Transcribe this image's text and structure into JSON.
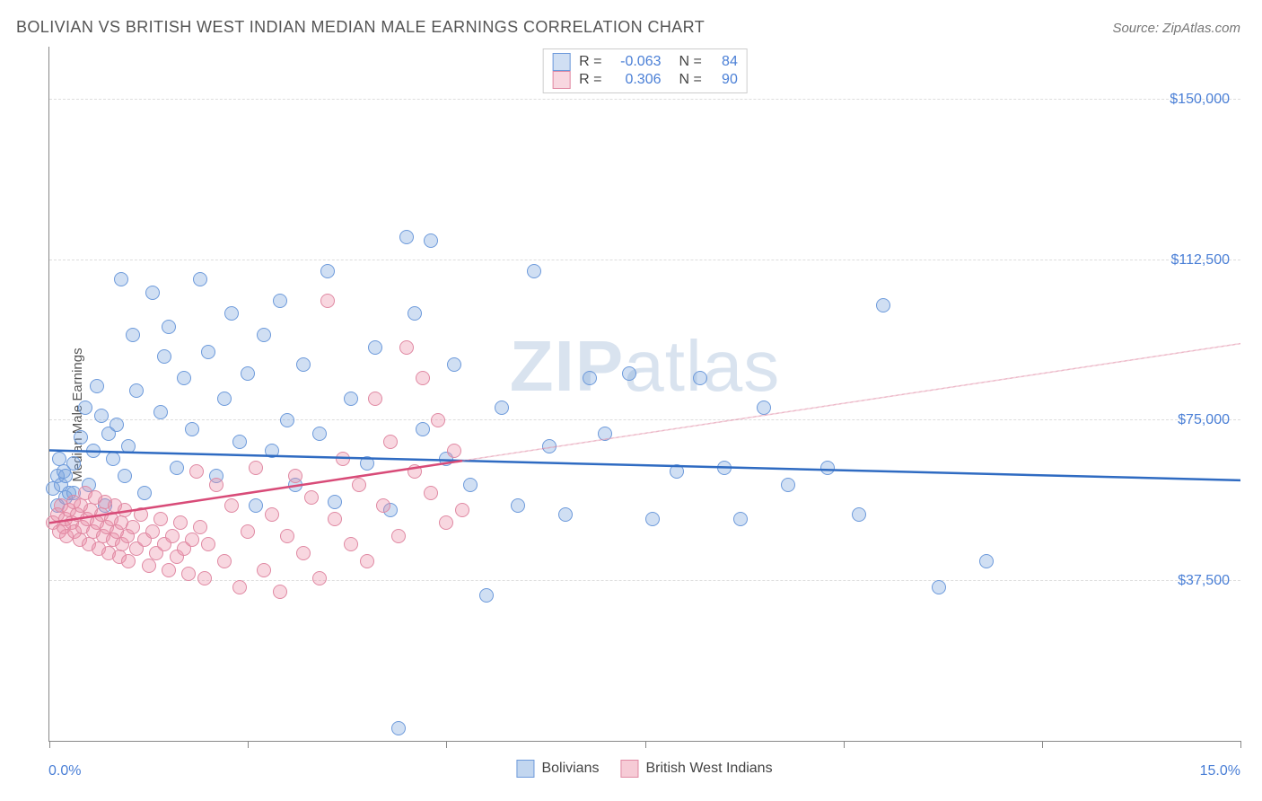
{
  "title": "BOLIVIAN VS BRITISH WEST INDIAN MEDIAN MALE EARNINGS CORRELATION CHART",
  "source": "Source: ZipAtlas.com",
  "watermark": "ZIPatlas",
  "y_axis_label": "Median Male Earnings",
  "chart": {
    "type": "scatter",
    "xlim": [
      0,
      15
    ],
    "ylim": [
      0,
      162500
    ],
    "x_tick_positions": [
      0,
      2.5,
      5,
      7.5,
      10,
      12.5,
      15
    ],
    "x_label_min": "0.0%",
    "x_label_max": "15.0%",
    "y_gridlines": [
      37500,
      75000,
      112500,
      150000
    ],
    "y_tick_labels": [
      "$37,500",
      "$75,000",
      "$112,500",
      "$150,000"
    ],
    "background_color": "#ffffff",
    "grid_color": "#dddddd",
    "axis_color": "#888888",
    "y_label_color": "#4a7fd6",
    "x_label_color": "#4a7fd6"
  },
  "series": [
    {
      "name": "Bolivians",
      "fill": "rgba(120,163,220,0.35)",
      "stroke": "#6d9adb",
      "line_color": "#2f6bc2",
      "r_value": "-0.063",
      "n_value": "84",
      "trend": {
        "x1": 0,
        "y1": 68000,
        "x2": 15,
        "y2": 61000,
        "solid_to_x": 15
      },
      "points": [
        [
          0.05,
          59000
        ],
        [
          0.1,
          62000
        ],
        [
          0.1,
          55000
        ],
        [
          0.12,
          66000
        ],
        [
          0.15,
          60000
        ],
        [
          0.18,
          63000
        ],
        [
          0.2,
          57000
        ],
        [
          0.25,
          58000
        ],
        [
          0.3,
          65000
        ],
        [
          0.4,
          71000
        ],
        [
          0.45,
          78000
        ],
        [
          0.5,
          60000
        ],
        [
          0.55,
          68000
        ],
        [
          0.6,
          83000
        ],
        [
          0.65,
          76000
        ],
        [
          0.7,
          55000
        ],
        [
          0.75,
          72000
        ],
        [
          0.8,
          66000
        ],
        [
          0.85,
          74000
        ],
        [
          0.9,
          108000
        ],
        [
          0.95,
          62000
        ],
        [
          1.0,
          69000
        ],
        [
          1.05,
          95000
        ],
        [
          1.1,
          82000
        ],
        [
          1.2,
          58000
        ],
        [
          1.3,
          105000
        ],
        [
          1.4,
          77000
        ],
        [
          1.45,
          90000
        ],
        [
          1.5,
          97000
        ],
        [
          1.6,
          64000
        ],
        [
          1.7,
          85000
        ],
        [
          1.8,
          73000
        ],
        [
          1.9,
          108000
        ],
        [
          2.0,
          91000
        ],
        [
          2.1,
          62000
        ],
        [
          2.2,
          80000
        ],
        [
          2.3,
          100000
        ],
        [
          2.4,
          70000
        ],
        [
          2.5,
          86000
        ],
        [
          2.6,
          55000
        ],
        [
          2.7,
          95000
        ],
        [
          2.8,
          68000
        ],
        [
          2.9,
          103000
        ],
        [
          3.0,
          75000
        ],
        [
          3.1,
          60000
        ],
        [
          3.2,
          88000
        ],
        [
          3.4,
          72000
        ],
        [
          3.5,
          110000
        ],
        [
          3.6,
          56000
        ],
        [
          3.8,
          80000
        ],
        [
          4.0,
          65000
        ],
        [
          4.1,
          92000
        ],
        [
          4.3,
          54000
        ],
        [
          4.5,
          118000
        ],
        [
          4.6,
          100000
        ],
        [
          4.7,
          73000
        ],
        [
          4.8,
          117000
        ],
        [
          5.0,
          66000
        ],
        [
          5.1,
          88000
        ],
        [
          5.3,
          60000
        ],
        [
          5.5,
          34000
        ],
        [
          5.7,
          78000
        ],
        [
          5.9,
          55000
        ],
        [
          6.1,
          110000
        ],
        [
          6.3,
          69000
        ],
        [
          6.5,
          53000
        ],
        [
          6.8,
          85000
        ],
        [
          7.0,
          72000
        ],
        [
          7.3,
          86000
        ],
        [
          7.6,
          52000
        ],
        [
          7.9,
          63000
        ],
        [
          8.2,
          85000
        ],
        [
          8.5,
          64000
        ],
        [
          8.7,
          52000
        ],
        [
          9.0,
          78000
        ],
        [
          9.3,
          60000
        ],
        [
          9.8,
          64000
        ],
        [
          10.2,
          53000
        ],
        [
          10.5,
          102000
        ],
        [
          11.2,
          36000
        ],
        [
          11.8,
          42000
        ],
        [
          4.4,
          3000
        ],
        [
          0.2,
          62000
        ],
        [
          0.3,
          58000
        ]
      ]
    },
    {
      "name": "British West Indians",
      "fill": "rgba(235,140,165,0.35)",
      "stroke": "#e089a3",
      "line_color": "#d84b78",
      "r_value": "0.306",
      "n_value": "90",
      "trend": {
        "x1": 0,
        "y1": 51000,
        "x2": 15,
        "y2": 93000,
        "solid_to_x": 5.2
      },
      "points": [
        [
          0.05,
          51000
        ],
        [
          0.1,
          53000
        ],
        [
          0.12,
          49000
        ],
        [
          0.15,
          55000
        ],
        [
          0.18,
          50000
        ],
        [
          0.2,
          52000
        ],
        [
          0.22,
          48000
        ],
        [
          0.25,
          54000
        ],
        [
          0.28,
          51000
        ],
        [
          0.3,
          56000
        ],
        [
          0.32,
          49000
        ],
        [
          0.35,
          53000
        ],
        [
          0.38,
          47000
        ],
        [
          0.4,
          55000
        ],
        [
          0.42,
          50000
        ],
        [
          0.45,
          58000
        ],
        [
          0.48,
          52000
        ],
        [
          0.5,
          46000
        ],
        [
          0.52,
          54000
        ],
        [
          0.55,
          49000
        ],
        [
          0.58,
          57000
        ],
        [
          0.6,
          51000
        ],
        [
          0.62,
          45000
        ],
        [
          0.65,
          53000
        ],
        [
          0.68,
          48000
        ],
        [
          0.7,
          56000
        ],
        [
          0.72,
          50000
        ],
        [
          0.75,
          44000
        ],
        [
          0.78,
          52000
        ],
        [
          0.8,
          47000
        ],
        [
          0.82,
          55000
        ],
        [
          0.85,
          49000
        ],
        [
          0.88,
          43000
        ],
        [
          0.9,
          51000
        ],
        [
          0.92,
          46000
        ],
        [
          0.95,
          54000
        ],
        [
          0.98,
          48000
        ],
        [
          1.0,
          42000
        ],
        [
          1.05,
          50000
        ],
        [
          1.1,
          45000
        ],
        [
          1.15,
          53000
        ],
        [
          1.2,
          47000
        ],
        [
          1.25,
          41000
        ],
        [
          1.3,
          49000
        ],
        [
          1.35,
          44000
        ],
        [
          1.4,
          52000
        ],
        [
          1.45,
          46000
        ],
        [
          1.5,
          40000
        ],
        [
          1.55,
          48000
        ],
        [
          1.6,
          43000
        ],
        [
          1.65,
          51000
        ],
        [
          1.7,
          45000
        ],
        [
          1.75,
          39000
        ],
        [
          1.8,
          47000
        ],
        [
          1.85,
          63000
        ],
        [
          1.9,
          50000
        ],
        [
          1.95,
          38000
        ],
        [
          2.0,
          46000
        ],
        [
          2.1,
          60000
        ],
        [
          2.2,
          42000
        ],
        [
          2.3,
          55000
        ],
        [
          2.4,
          36000
        ],
        [
          2.5,
          49000
        ],
        [
          2.6,
          64000
        ],
        [
          2.7,
          40000
        ],
        [
          2.8,
          53000
        ],
        [
          2.9,
          35000
        ],
        [
          3.0,
          48000
        ],
        [
          3.1,
          62000
        ],
        [
          3.2,
          44000
        ],
        [
          3.3,
          57000
        ],
        [
          3.4,
          38000
        ],
        [
          3.5,
          103000
        ],
        [
          3.6,
          52000
        ],
        [
          3.7,
          66000
        ],
        [
          3.8,
          46000
        ],
        [
          3.9,
          60000
        ],
        [
          4.0,
          42000
        ],
        [
          4.1,
          80000
        ],
        [
          4.2,
          55000
        ],
        [
          4.3,
          70000
        ],
        [
          4.4,
          48000
        ],
        [
          4.5,
          92000
        ],
        [
          4.6,
          63000
        ],
        [
          4.7,
          85000
        ],
        [
          4.8,
          58000
        ],
        [
          4.9,
          75000
        ],
        [
          5.0,
          51000
        ],
        [
          5.1,
          68000
        ],
        [
          5.2,
          54000
        ]
      ]
    }
  ],
  "legend_bottom": [
    {
      "label": "Bolivians",
      "fill": "rgba(120,163,220,0.45)",
      "stroke": "#6d9adb"
    },
    {
      "label": "British West Indians",
      "fill": "rgba(235,140,165,0.45)",
      "stroke": "#e089a3"
    }
  ]
}
